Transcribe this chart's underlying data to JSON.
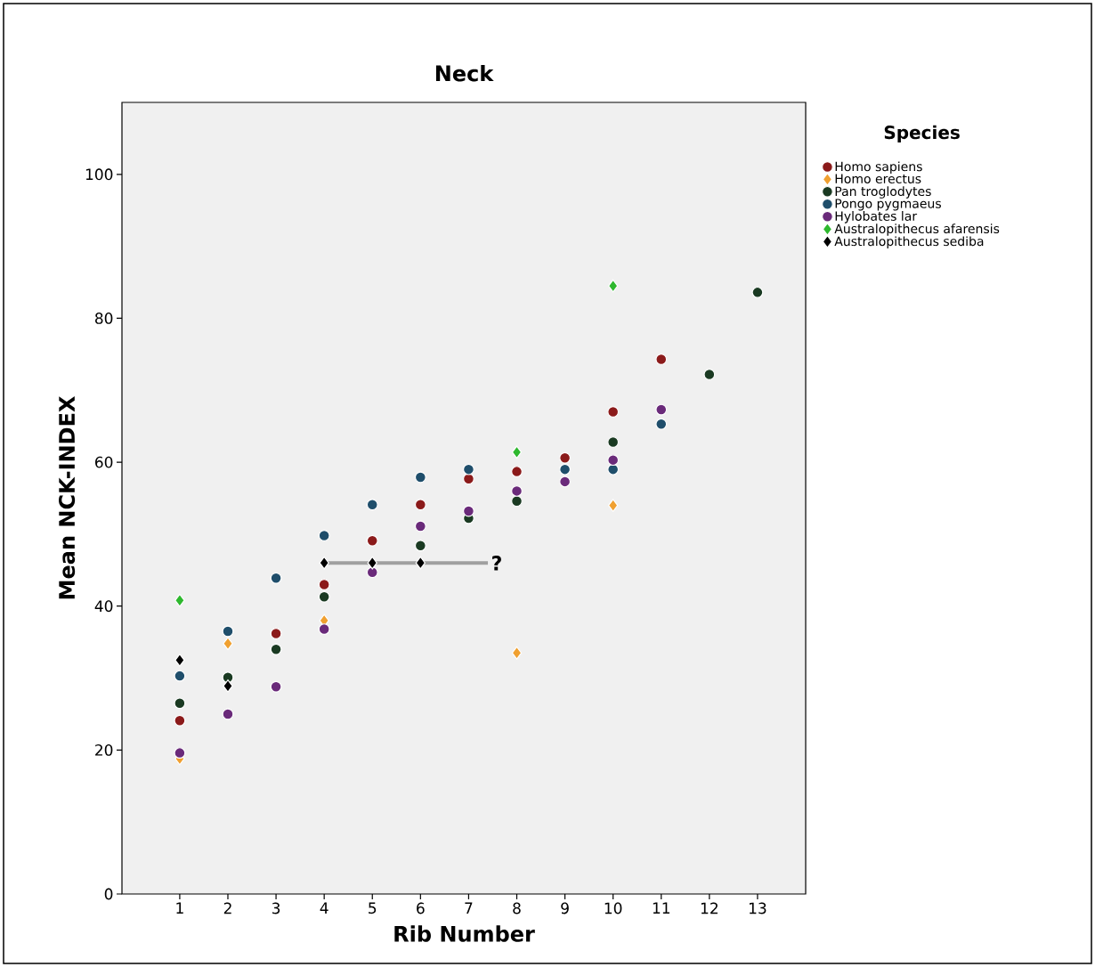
{
  "chart_data": {
    "type": "scatter",
    "title": "Neck",
    "xlabel": "Rib Number",
    "ylabel": "Mean NCK-INDEX",
    "legend_title": "Species",
    "legend": "right",
    "marker": "circle",
    "xlim": [
      -0.2,
      14
    ],
    "xticks": [
      1,
      2,
      3,
      4,
      5,
      6,
      7,
      8,
      9,
      10,
      11,
      12,
      13
    ],
    "ylim": [
      0,
      110
    ],
    "yticks": [
      0,
      20,
      40,
      60,
      80,
      100
    ],
    "series": [
      {
        "name": "Homo sapiens",
        "color": "#8b1a1a",
        "x": [
          1,
          3,
          4,
          5,
          6,
          7,
          8,
          9,
          10,
          11
        ],
        "values": [
          24.1,
          36.2,
          43.0,
          49.1,
          54.1,
          57.7,
          58.7,
          60.6,
          67.0,
          74.3
        ]
      },
      {
        "name": "Homo erectus",
        "color": "#f0a030",
        "marker": "diamond",
        "x": [
          1,
          2,
          4,
          8,
          10
        ],
        "values": [
          18.8,
          34.8,
          38.0,
          33.5,
          54.0
        ]
      },
      {
        "name": "Pan troglodytes",
        "color": "#1a3a22",
        "x": [
          1,
          2,
          3,
          4,
          6,
          7,
          8,
          10,
          12,
          13
        ],
        "values": [
          26.5,
          30.1,
          34.0,
          41.3,
          48.4,
          52.2,
          54.6,
          62.8,
          72.2,
          83.6
        ]
      },
      {
        "name": "Pongo pygmaeus",
        "color": "#1f4e6b",
        "x": [
          1,
          2,
          3,
          4,
          5,
          6,
          7,
          9,
          10,
          11
        ],
        "values": [
          30.3,
          36.5,
          43.9,
          49.8,
          54.1,
          57.9,
          59.0,
          59.0,
          59.0,
          65.3
        ]
      },
      {
        "name": "Hylobates lar",
        "color": "#6a2a7a",
        "x": [
          1,
          2,
          3,
          4,
          5,
          6,
          7,
          8,
          9,
          10,
          11
        ],
        "values": [
          19.6,
          25.0,
          28.8,
          36.8,
          44.7,
          51.1,
          53.2,
          56.0,
          57.3,
          60.3,
          67.3
        ]
      },
      {
        "name": "Australopithecus afarensis",
        "color": "#2eb82e",
        "marker": "diamond",
        "x": [
          1,
          8,
          10
        ],
        "values": [
          40.8,
          61.4,
          84.5
        ]
      },
      {
        "type": "line",
        "color": "#a0a0a0",
        "marker": "none",
        "x": [
          4,
          7.4
        ],
        "values": [
          46.0,
          46.0
        ]
      },
      {
        "name": "Australopithecus sediba",
        "color": "#000000",
        "marker": "diamond",
        "x": [
          1,
          2,
          4,
          5,
          6
        ],
        "values": [
          32.5,
          28.9,
          46.0,
          46.0,
          46.0
        ]
      }
    ],
    "annotations": [
      {
        "text": "?",
        "x": 7.4,
        "y": 46.0
      }
    ]
  }
}
